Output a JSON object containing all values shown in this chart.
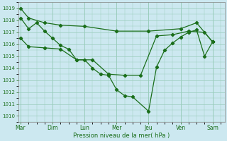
{
  "xlabel": "Pression niveau de la mer( hPa )",
  "bg_color": "#cce8f0",
  "grid_color": "#99ccbb",
  "line_color": "#1a6e1a",
  "ylim": [
    1009.5,
    1019.5
  ],
  "yticks": [
    1010,
    1011,
    1012,
    1013,
    1014,
    1015,
    1016,
    1017,
    1018,
    1019
  ],
  "day_labels": [
    "Mar",
    "Dim",
    "Lun",
    "Mer",
    "Jeu",
    "Ven",
    "Sam"
  ],
  "day_positions": [
    0,
    4,
    8,
    12,
    16,
    20,
    24
  ],
  "xlim": [
    -0.3,
    25.5
  ],
  "line1_x": [
    0,
    1,
    3,
    5,
    8,
    12,
    16,
    20,
    22,
    24
  ],
  "line1_y": [
    1019.0,
    1018.2,
    1017.8,
    1017.6,
    1017.5,
    1017.1,
    1017.1,
    1017.3,
    1017.8,
    1016.2
  ],
  "line2_x": [
    0,
    1,
    3,
    5,
    7,
    9,
    11,
    13,
    15,
    17,
    19,
    21,
    23,
    24
  ],
  "line2_y": [
    1016.5,
    1015.8,
    1015.7,
    1015.6,
    1014.7,
    1014.7,
    1013.5,
    1013.4,
    1013.4,
    1016.7,
    1016.8,
    1017.1,
    1017.0,
    1016.2
  ],
  "line3_x": [
    0,
    1,
    2,
    3,
    4,
    5,
    6,
    7,
    8,
    9,
    10,
    11,
    12,
    13,
    14,
    16,
    17,
    18,
    19,
    20,
    21,
    22,
    23,
    24
  ],
  "line3_y": [
    1018.2,
    1017.3,
    1017.8,
    1017.1,
    1016.5,
    1015.9,
    1015.6,
    1014.7,
    1014.7,
    1014.0,
    1013.5,
    1013.4,
    1012.2,
    1011.7,
    1011.6,
    1010.4,
    1014.1,
    1015.5,
    1016.1,
    1016.6,
    1017.0,
    1017.2,
    1015.0,
    1016.2
  ]
}
